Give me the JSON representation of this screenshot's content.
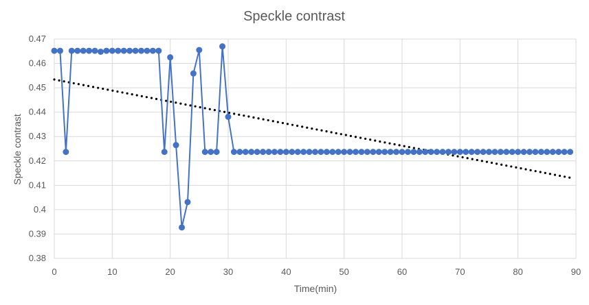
{
  "chart_data": {
    "type": "line",
    "title": "Speckle contrast",
    "xlabel": "Time(min)",
    "ylabel": "Speckle contrast",
    "xlim": [
      0,
      90
    ],
    "ylim": [
      0.38,
      0.47
    ],
    "xticks": [
      0,
      10,
      20,
      30,
      40,
      50,
      60,
      70,
      80,
      90
    ],
    "yticks": [
      0.38,
      0.39,
      0.4,
      0.41,
      0.42,
      0.43,
      0.44,
      0.45,
      0.46,
      0.47
    ],
    "grid": true,
    "legend": "none",
    "colors": {
      "series": "#4472C4",
      "trendline": "#000000",
      "grid": "#d9d9d9",
      "text": "#595959"
    },
    "series": [
      {
        "style": "line-with-markers",
        "x": [
          0,
          1,
          2,
          3,
          4,
          5,
          6,
          7,
          8,
          9,
          10,
          11,
          12,
          13,
          14,
          15,
          16,
          17,
          18,
          19,
          20,
          21,
          22,
          23,
          24,
          25,
          26,
          27,
          28,
          29,
          30,
          31,
          32,
          33,
          34,
          35,
          36,
          37,
          38,
          39,
          40,
          41,
          42,
          43,
          44,
          45,
          46,
          47,
          48,
          49,
          50,
          51,
          52,
          53,
          54,
          55,
          56,
          57,
          58,
          59,
          60,
          61,
          62,
          63,
          64,
          65,
          66,
          67,
          68,
          69,
          70,
          71,
          72,
          73,
          74,
          75,
          76,
          77,
          78,
          79,
          80,
          81,
          82,
          83,
          84,
          85,
          86,
          87,
          88,
          89
        ],
        "y": [
          0.4652,
          0.4652,
          0.4237,
          0.4652,
          0.4652,
          0.4652,
          0.4652,
          0.4652,
          0.4648,
          0.4652,
          0.4652,
          0.4652,
          0.4652,
          0.4652,
          0.4652,
          0.4652,
          0.4652,
          0.4652,
          0.4652,
          0.4237,
          0.4625,
          0.4265,
          0.3927,
          0.4031,
          0.4559,
          0.4655,
          0.4237,
          0.4237,
          0.4237,
          0.467,
          0.4381,
          0.4237,
          0.4237,
          0.4237,
          0.4237,
          0.4237,
          0.4237,
          0.4237,
          0.4237,
          0.4237,
          0.4237,
          0.4237,
          0.4237,
          0.4237,
          0.4237,
          0.4237,
          0.4237,
          0.4237,
          0.4237,
          0.4237,
          0.4237,
          0.4237,
          0.4237,
          0.4237,
          0.4237,
          0.4237,
          0.4237,
          0.4237,
          0.4237,
          0.4237,
          0.4237,
          0.4237,
          0.4237,
          0.4237,
          0.4237,
          0.4237,
          0.4237,
          0.4237,
          0.4237,
          0.4237,
          0.4237,
          0.4237,
          0.4237,
          0.4237,
          0.4237,
          0.4237,
          0.4237,
          0.4237,
          0.4237,
          0.4237,
          0.4237,
          0.4237,
          0.4237,
          0.4237,
          0.4237,
          0.4237,
          0.4237,
          0.4237,
          0.4237,
          0.4237
        ]
      },
      {
        "style": "dotted-linear-trendline",
        "x": [
          0,
          89
        ],
        "y": [
          0.4534,
          0.4131
        ]
      }
    ]
  }
}
